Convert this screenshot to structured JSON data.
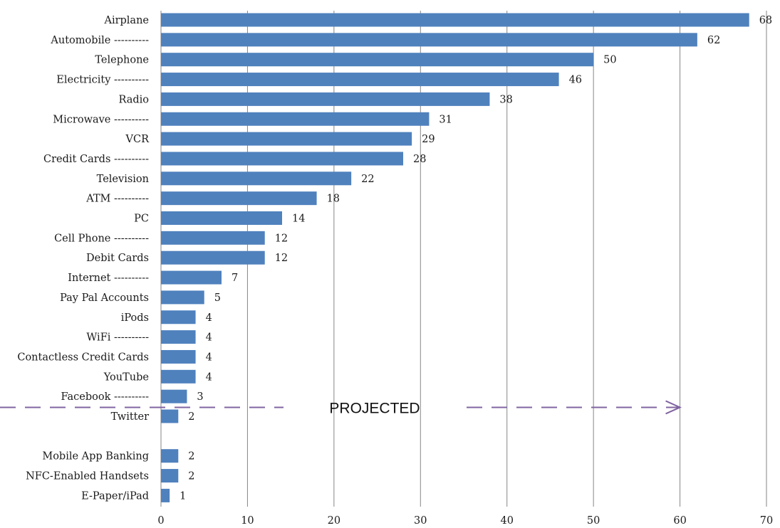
{
  "chart_data": {
    "type": "bar",
    "orientation": "horizontal",
    "categories": [
      "Airplane",
      "Automobile ----------",
      "Telephone",
      "Electricity ----------",
      "Radio",
      "Microwave ----------",
      "VCR",
      "Credit Cards ----------",
      "Television",
      "ATM ----------",
      "PC",
      "Cell Phone ----------",
      "Debit Cards",
      "Internet ----------",
      "Pay Pal Accounts",
      "iPods",
      "WiFi ----------",
      "Contactless Credit Cards",
      "YouTube",
      "Facebook ----------",
      "Twitter",
      "",
      "Mobile App Banking",
      "NFC-Enabled Handsets",
      "E-Paper/iPad"
    ],
    "values": [
      68,
      62,
      50,
      46,
      38,
      31,
      29,
      28,
      22,
      18,
      14,
      12,
      12,
      7,
      5,
      4,
      4,
      4,
      4,
      3,
      2,
      null,
      2,
      2,
      1
    ],
    "xlim": [
      0,
      70
    ],
    "xticks": [
      0,
      10,
      20,
      30,
      40,
      50,
      60,
      70
    ],
    "grid": "vertical",
    "bar_color": "#4f81bd",
    "grid_color": "#868686",
    "annotation": {
      "text": "PROJECTED",
      "arrow_color": "#8064a2",
      "arrow_end_x": 60,
      "position_after_category": "Facebook ----------"
    }
  }
}
